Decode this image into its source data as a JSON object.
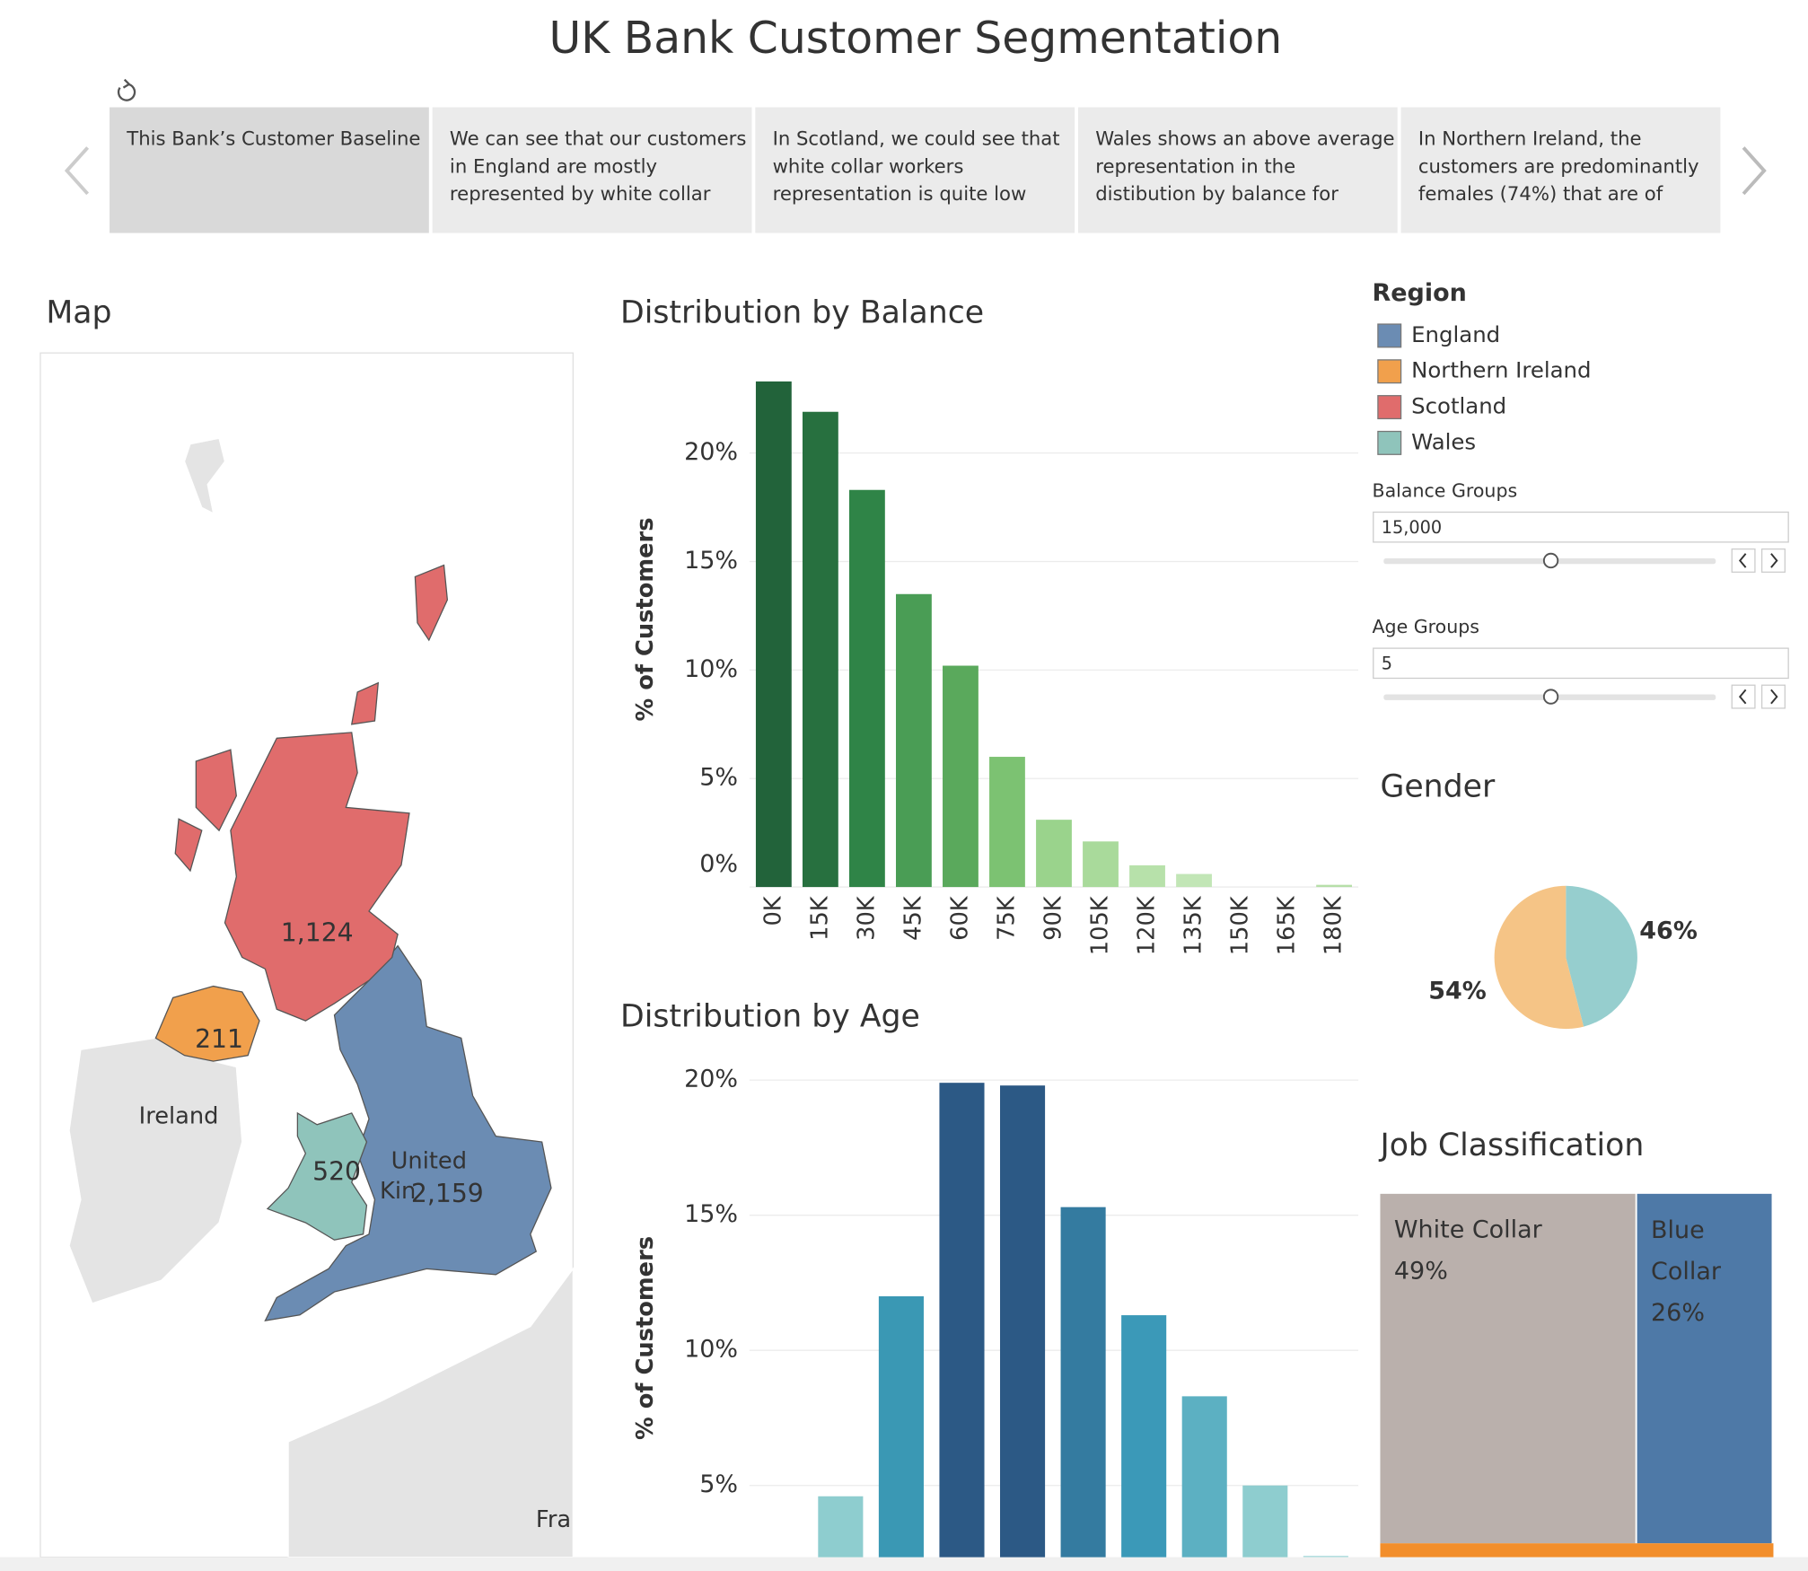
{
  "header": {
    "title": "UK Bank Customer Segmentation"
  },
  "story": {
    "points": [
      {
        "lines": [
          "This Bank’s Customer Baseline"
        ]
      },
      {
        "lines": [
          "We can see that our customers",
          "in England are mostly",
          "represented by white collar"
        ]
      },
      {
        "lines": [
          "In Scotland, we could see that",
          "white collar workers",
          "representation is quite low"
        ]
      },
      {
        "lines": [
          "Wales shows an above average",
          "representation in the",
          "distibution by balance for"
        ]
      },
      {
        "lines": [
          "In Northern Ireland, the",
          "customers are predominantly",
          "females (74%) that are of"
        ]
      }
    ]
  },
  "map": {
    "title": "Map",
    "counts": [
      2159,
      211,
      1124,
      520
    ],
    "value_labels": [
      "2,159",
      "211",
      "1,124",
      "520"
    ],
    "basemap_labels": [
      "Ireland",
      "United",
      "Kin",
      "Fra"
    ]
  },
  "region_legend": {
    "title": "Region",
    "items": [
      {
        "name": "England",
        "color": "#6b8cb3"
      },
      {
        "name": "Northern Ireland",
        "color": "#f1a04c"
      },
      {
        "name": "Scotland",
        "color": "#e06c6c"
      },
      {
        "name": "Wales",
        "color": "#8fc4bb"
      }
    ]
  },
  "filters": [
    {
      "label": "Balance Groups",
      "value": "15,000"
    },
    {
      "label": "Age Groups",
      "value": "5"
    }
  ],
  "chart_data": [
    {
      "type": "bar",
      "title": "Distribution by Balance",
      "y_label": "% of Customers",
      "categories": [
        "0K",
        "15K",
        "30K",
        "45K",
        "60K",
        "75K",
        "90K",
        "105K",
        "120K",
        "135K",
        "150K",
        "165K",
        "180K"
      ],
      "values": [
        23.3,
        21.9,
        18.3,
        13.5,
        10.2,
        6.0,
        3.1,
        2.1,
        1.0,
        0.6,
        0,
        0,
        0.1
      ],
      "colors": [
        "#22633a",
        "#27703f",
        "#2f8447",
        "#4a9d55",
        "#5aa95c",
        "#7cc272",
        "#9ad38c",
        "#a9da9b",
        "#b7e1aa",
        "#c2e6b6",
        "#c9e9bd",
        "#cfecc4",
        "#b6dfa8"
      ],
      "ylim": [
        0,
        24.4
      ],
      "yticks": [
        {
          "value": 0,
          "label": "0%"
        },
        {
          "value": 5,
          "label": "5%"
        },
        {
          "value": 10,
          "label": "10%"
        },
        {
          "value": 15,
          "label": "15%"
        },
        {
          "value": 20,
          "label": "20%"
        }
      ],
      "grid": true
    },
    {
      "type": "bar",
      "title": "Distribution by Age",
      "y_label": "% of Customers",
      "categories": [
        null,
        null,
        null,
        null,
        null,
        null,
        null,
        null,
        null
      ],
      "values": [
        4.6,
        12.0,
        19.9,
        19.8,
        15.3,
        11.3,
        8.3,
        5.0,
        2.4
      ],
      "colors": [
        "#8ecdcf",
        "#3a98b4",
        "#2c5985",
        "#2c5985",
        "#347ba0",
        "#3b99b8",
        "#5cb0c2",
        "#8ecdcf",
        "#b5dfe0"
      ],
      "ylim": [
        0,
        20.7
      ],
      "yticks": [
        {
          "value": 5,
          "label": "5%"
        },
        {
          "value": 10,
          "label": "10%"
        },
        {
          "value": 15,
          "label": "15%"
        },
        {
          "value": 20,
          "label": "20%"
        }
      ],
      "grid": true
    },
    {
      "type": "pie",
      "title": "Gender",
      "values": [
        46,
        54
      ],
      "value_labels": [
        "46%",
        "54%"
      ],
      "colors": [
        "#96cece",
        "#f5c486"
      ]
    },
    {
      "type": "treemap",
      "title": "Job Classification",
      "categories": [
        "White Collar",
        "Blue Collar"
      ],
      "values": [
        49,
        26
      ],
      "value_labels": [
        "49%",
        "26%"
      ],
      "colors": [
        "#bab0ac",
        "#4e79a7"
      ]
    }
  ]
}
